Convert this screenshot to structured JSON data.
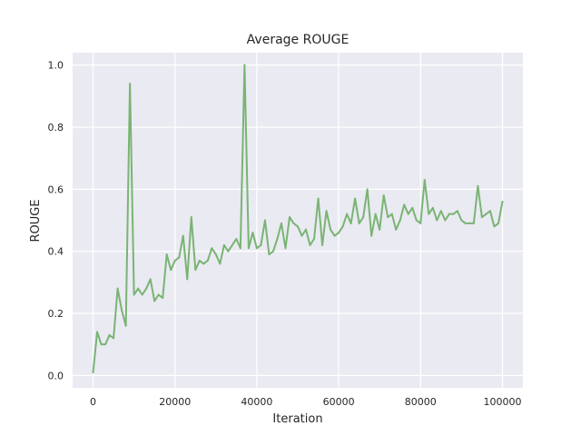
{
  "chart_data": {
    "type": "line",
    "title": "Average ROUGE",
    "xlabel": "Iteration",
    "ylabel": "ROUGE",
    "xlim": [
      -5000,
      105000
    ],
    "ylim": [
      -0.04,
      1.04
    ],
    "xticks": [
      0,
      20000,
      40000,
      60000,
      80000,
      100000
    ],
    "xtick_labels": [
      "0",
      "20000",
      "40000",
      "60000",
      "80000",
      "100000"
    ],
    "yticks": [
      0.0,
      0.2,
      0.4,
      0.6,
      0.8,
      1.0
    ],
    "ytick_labels": [
      "0.0",
      "0.2",
      "0.4",
      "0.6",
      "0.8",
      "1.0"
    ],
    "grid": true,
    "background_color": "#eaeaf2",
    "grid_color": "#ffffff",
    "series": [
      {
        "color": "#79b473",
        "x": [
          0,
          1000,
          2000,
          3000,
          4000,
          5000,
          6000,
          7000,
          8000,
          9000,
          10000,
          11000,
          12000,
          13000,
          14000,
          15000,
          16000,
          17000,
          18000,
          19000,
          20000,
          21000,
          22000,
          23000,
          24000,
          25000,
          26000,
          27000,
          28000,
          29000,
          30000,
          31000,
          32000,
          33000,
          34000,
          35000,
          36000,
          37000,
          38000,
          39000,
          40000,
          41000,
          42000,
          43000,
          44000,
          45000,
          46000,
          47000,
          48000,
          49000,
          50000,
          51000,
          52000,
          53000,
          54000,
          55000,
          56000,
          57000,
          58000,
          59000,
          60000,
          61000,
          62000,
          63000,
          64000,
          65000,
          66000,
          67000,
          68000,
          69000,
          70000,
          71000,
          72000,
          73000,
          74000,
          75000,
          76000,
          77000,
          78000,
          79000,
          80000,
          81000,
          82000,
          83000,
          84000,
          85000,
          86000,
          87000,
          88000,
          89000,
          90000,
          91000,
          92000,
          93000,
          94000,
          95000,
          96000,
          97000,
          98000,
          99000,
          100000
        ],
        "y": [
          0.01,
          0.14,
          0.1,
          0.1,
          0.13,
          0.12,
          0.28,
          0.21,
          0.16,
          0.94,
          0.26,
          0.28,
          0.26,
          0.28,
          0.31,
          0.24,
          0.26,
          0.25,
          0.39,
          0.34,
          0.37,
          0.38,
          0.45,
          0.31,
          0.51,
          0.34,
          0.37,
          0.36,
          0.37,
          0.41,
          0.39,
          0.36,
          0.42,
          0.4,
          0.42,
          0.44,
          0.41,
          1.0,
          0.41,
          0.46,
          0.41,
          0.42,
          0.5,
          0.39,
          0.4,
          0.44,
          0.49,
          0.41,
          0.51,
          0.49,
          0.48,
          0.45,
          0.47,
          0.42,
          0.44,
          0.57,
          0.42,
          0.53,
          0.47,
          0.45,
          0.46,
          0.48,
          0.52,
          0.49,
          0.57,
          0.49,
          0.51,
          0.6,
          0.45,
          0.52,
          0.47,
          0.58,
          0.51,
          0.52,
          0.47,
          0.5,
          0.55,
          0.52,
          0.54,
          0.5,
          0.49,
          0.63,
          0.52,
          0.54,
          0.5,
          0.53,
          0.5,
          0.52,
          0.52,
          0.53,
          0.5,
          0.49,
          0.49,
          0.49,
          0.61,
          0.51,
          0.52,
          0.53,
          0.48,
          0.49,
          0.56
        ]
      }
    ]
  }
}
